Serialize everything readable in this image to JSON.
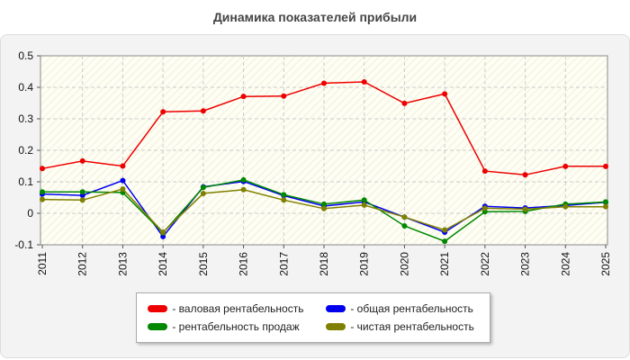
{
  "chart_data": {
    "type": "line",
    "title": "Динамика показателей прибыли",
    "xlabel": "",
    "ylabel": "",
    "categories": [
      "2011",
      "2012",
      "2013",
      "2014",
      "2015",
      "2016",
      "2017",
      "2018",
      "2019",
      "2020",
      "2021",
      "2022",
      "2023",
      "2024",
      "2025"
    ],
    "ylim": [
      -0.1,
      0.5
    ],
    "yticks": [
      "0.5",
      "0.4",
      "0.3",
      "0.2",
      "0.1",
      "0",
      "-0.1"
    ],
    "grid": true,
    "legend_position": "bottom",
    "series": [
      {
        "name": "- валовая рентабельность",
        "color": "#ee0000",
        "values": [
          0.142,
          0.166,
          0.15,
          0.322,
          0.325,
          0.371,
          0.372,
          0.413,
          0.417,
          0.349,
          0.379,
          0.134,
          0.122,
          0.149,
          0.149
        ]
      },
      {
        "name": "- общая рентабельность",
        "color": "#0000ee",
        "values": [
          0.061,
          0.057,
          0.104,
          -0.074,
          0.084,
          0.101,
          0.056,
          0.023,
          0.036,
          -0.012,
          -0.06,
          0.022,
          0.017,
          0.025,
          0.035
        ]
      },
      {
        "name": "- рентабельность продаж",
        "color": "#008800",
        "values": [
          0.068,
          0.068,
          0.066,
          -0.062,
          0.082,
          0.106,
          0.059,
          0.029,
          0.042,
          -0.04,
          -0.089,
          0.005,
          0.006,
          0.029,
          0.036
        ]
      },
      {
        "name": "- чистая рентабельность",
        "color": "#808000",
        "values": [
          0.044,
          0.042,
          0.077,
          -0.06,
          0.063,
          0.075,
          0.042,
          0.015,
          0.026,
          -0.012,
          -0.053,
          0.016,
          0.013,
          0.021,
          0.021
        ]
      }
    ]
  }
}
